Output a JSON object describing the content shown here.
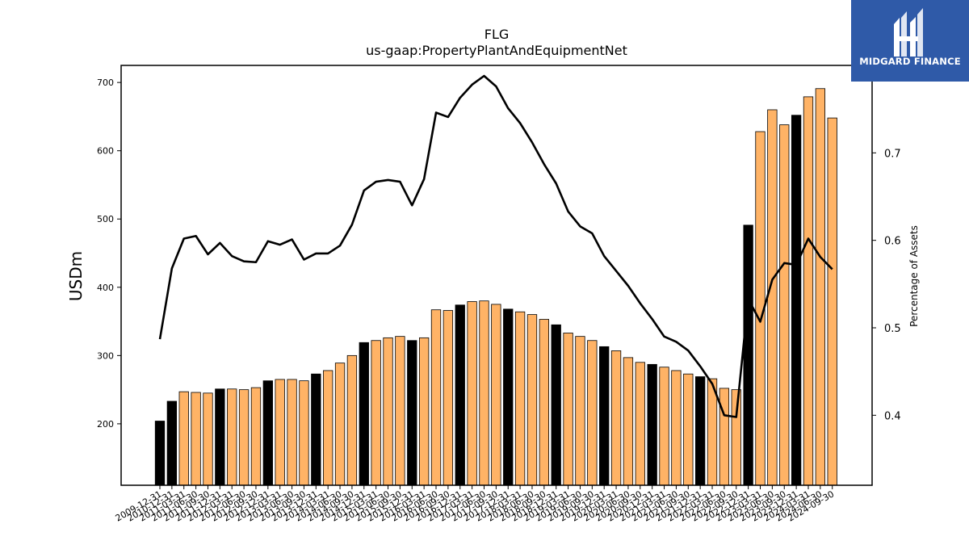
{
  "logo": {
    "name": "MIDGARD FINANCE",
    "icon": "midgard-logo-icon"
  },
  "chart_data": {
    "type": "bar",
    "title": "FLG",
    "subtitle": "us-gaap:PropertyPlantAndEquipmentNet",
    "ylabel": "USDm",
    "y2label": "Percentage of Assets",
    "ylim": [
      110,
      725
    ],
    "y2lim": [
      0.32,
      0.8
    ],
    "yticks": [
      200,
      300,
      400,
      500,
      600,
      700
    ],
    "y2ticks": [
      0.4,
      0.5,
      0.6,
      0.7
    ],
    "colors": {
      "bar_year_end": "#000000",
      "bar_quarter": "#ffb366",
      "line": "#000000"
    },
    "grid": false,
    "categories": [
      "2009-12-31",
      "2010-12-31",
      "2011-03-31",
      "2011-06-30",
      "2011-09-30",
      "2011-12-31",
      "2012-03-31",
      "2012-06-30",
      "2012-09-30",
      "2012-12-31",
      "2013-03-31",
      "2013-06-30",
      "2013-09-30",
      "2013-12-31",
      "2014-03-31",
      "2014-06-30",
      "2014-09-30",
      "2014-12-31",
      "2015-03-31",
      "2015-06-30",
      "2015-09-30",
      "2015-12-31",
      "2016-03-31",
      "2016-06-30",
      "2016-09-30",
      "2016-12-31",
      "2017-03-31",
      "2017-06-30",
      "2017-09-30",
      "2017-12-31",
      "2018-03-31",
      "2018-06-30",
      "2018-09-30",
      "2018-12-31",
      "2019-03-31",
      "2019-06-30",
      "2019-09-30",
      "2019-12-31",
      "2020-03-31",
      "2020-06-30",
      "2020-09-30",
      "2020-12-31",
      "2021-03-31",
      "2021-06-30",
      "2021-09-30",
      "2021-12-31",
      "2022-03-31",
      "2022-06-30",
      "2022-09-30",
      "2022-12-31",
      "2023-03-31",
      "2023-06-30",
      "2023-09-30",
      "2023-12-31",
      "2024-03-31",
      "2024-06-30",
      "2024-09-30"
    ],
    "x_tick_labels": [
      "2009-12-31",
      "2010-12-31",
      "2011-03-31",
      "2011-06-30",
      "2011-09-30",
      "2011-12-31",
      "2012-03-31",
      "2012-06-30",
      "2012-09-30",
      "2012-12-31",
      "2013-03-31",
      "2013-06-30",
      "2013-09-30",
      "2013-12-31",
      "2014-03-31",
      "2014-06-30",
      "2014-09-30",
      "2014-12-31",
      "2015-03-31",
      "2015-06-30",
      "2015-09-30",
      "2015-12-31",
      "2016-03-31",
      "2016-06-30",
      "2016-09-30",
      "2016-12-31",
      "2017-03-31",
      "2017-06-30",
      "2017-09-30",
      "2017-12-31",
      "2018-03-31",
      "2018-06-30",
      "2018-09-30",
      "2018-12-31",
      "2019-03-31",
      "2019-06-30",
      "2019-09-30",
      "2019-12-31",
      "2020-03-31",
      "2020-06-30",
      "2020-09-30",
      "2020-12-31",
      "2021-03-31",
      "2021-06-30",
      "2021-09-30",
      "2021-12-31",
      "2022-03-31",
      "2022-06-30",
      "2022-09-30",
      "2022-12-31",
      "2023-03-31",
      "2023-06-30",
      "2023-09-30",
      "2023-12-31",
      "2024-03-31",
      "2024-06-30",
      "2024-09-30"
    ],
    "series": [
      {
        "name": "PropertyPlantAndEquipmentNet",
        "axis": "left",
        "type": "bar",
        "values": [
          204,
          233,
          247,
          246,
          245,
          251,
          251,
          250,
          253,
          263,
          265,
          265,
          263,
          273,
          278,
          289,
          300,
          319,
          322,
          326,
          328,
          322,
          326,
          367,
          366,
          374,
          379,
          380,
          375,
          368,
          364,
          360,
          353,
          345,
          333,
          328,
          322,
          313,
          307,
          297,
          290,
          287,
          283,
          278,
          273,
          269,
          266,
          252,
          250,
          491,
          628,
          660,
          638,
          652,
          679,
          691,
          648
        ],
        "year_end": [
          true,
          true,
          false,
          false,
          false,
          true,
          false,
          false,
          false,
          true,
          false,
          false,
          false,
          true,
          false,
          false,
          false,
          true,
          false,
          false,
          false,
          true,
          false,
          false,
          false,
          true,
          false,
          false,
          false,
          true,
          false,
          false,
          false,
          true,
          false,
          false,
          false,
          true,
          false,
          false,
          false,
          true,
          false,
          false,
          false,
          true,
          false,
          false,
          false,
          true,
          false,
          false,
          false,
          true,
          false,
          false,
          false
        ]
      },
      {
        "name": "Percentage of Assets",
        "axis": "right",
        "type": "line",
        "values": [
          0.487,
          0.568,
          0.602,
          0.605,
          0.584,
          0.597,
          0.582,
          0.576,
          0.575,
          0.599,
          0.595,
          0.601,
          0.578,
          0.585,
          0.585,
          0.594,
          0.618,
          0.657,
          0.667,
          0.669,
          0.667,
          0.64,
          0.67,
          0.746,
          0.741,
          0.763,
          0.778,
          0.788,
          0.776,
          0.751,
          0.734,
          0.712,
          0.687,
          0.665,
          0.633,
          0.616,
          0.608,
          0.582,
          0.565,
          0.548,
          0.528,
          0.51,
          0.49,
          0.484,
          0.474,
          0.456,
          0.436,
          0.4,
          0.398,
          0.533,
          0.507,
          0.555,
          0.574,
          0.572,
          0.602,
          0.581,
          0.567
        ]
      }
    ]
  }
}
